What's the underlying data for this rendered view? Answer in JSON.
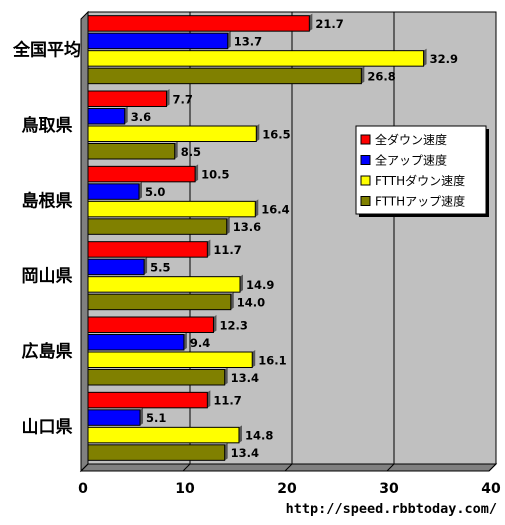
{
  "chart_data": {
    "type": "bar",
    "orientation": "horizontal",
    "categories": [
      "全国平均",
      "鳥取県",
      "島根県",
      "岡山県",
      "広島県",
      "山口県"
    ],
    "series": [
      {
        "name": "全ダウン速度",
        "color": "#ff0000",
        "values": [
          21.7,
          7.7,
          10.5,
          11.7,
          12.3,
          11.7
        ]
      },
      {
        "name": "全アップ速度",
        "color": "#0000ff",
        "values": [
          13.7,
          3.6,
          5.0,
          5.5,
          9.4,
          5.1
        ]
      },
      {
        "name": "FTTHダウン速度",
        "color": "#ffff00",
        "values": [
          32.9,
          16.5,
          16.4,
          14.9,
          16.1,
          14.8
        ]
      },
      {
        "name": "FTTHアップ速度",
        "color": "#808000",
        "values": [
          26.8,
          8.5,
          13.6,
          14.0,
          13.4,
          13.4
        ]
      }
    ],
    "xlim": [
      0,
      40
    ],
    "xticks": [
      0,
      10,
      20,
      30,
      40
    ],
    "grid": true,
    "legend_position": "right",
    "plot_background": "#c0c0c0",
    "source_text": "http://speed.rbbtoday.com/"
  }
}
